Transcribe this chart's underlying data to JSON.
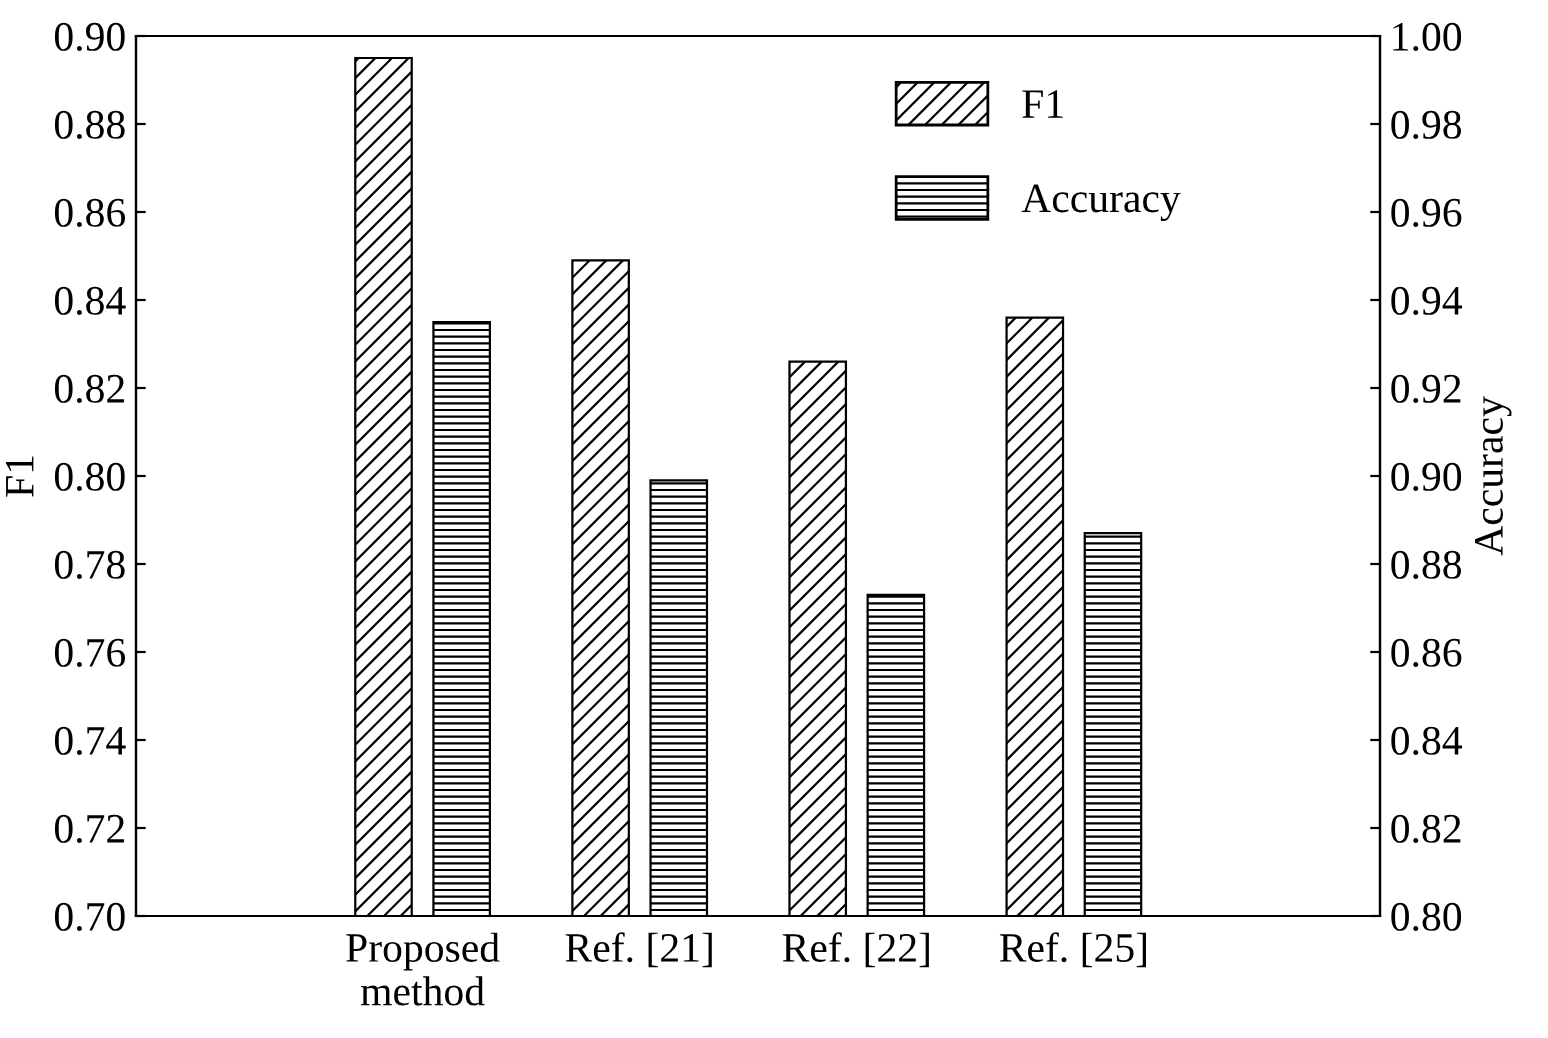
{
  "chart_data": {
    "type": "bar",
    "categories": [
      "Proposed\nmethod",
      "Ref. [21]",
      "Ref. [22]",
      "Ref. [25]"
    ],
    "ylabel": "F1",
    "y2label": "Accuracy",
    "ylim": [
      0.7,
      0.9
    ],
    "yticks": [
      {
        "value": 0.7,
        "label": "0.70"
      },
      {
        "value": 0.72,
        "label": "0.72"
      },
      {
        "value": 0.74,
        "label": "0.74"
      },
      {
        "value": 0.76,
        "label": "0.76"
      },
      {
        "value": 0.78,
        "label": "0.78"
      },
      {
        "value": 0.8,
        "label": "0.80"
      },
      {
        "value": 0.82,
        "label": "0.82"
      },
      {
        "value": 0.84,
        "label": "0.84"
      },
      {
        "value": 0.86,
        "label": "0.86"
      },
      {
        "value": 0.88,
        "label": "0.88"
      },
      {
        "value": 0.9,
        "label": "0.90"
      }
    ],
    "y2lim": [
      0.8,
      1.0
    ],
    "y2ticks": [
      {
        "value": 0.8,
        "label": "0.80"
      },
      {
        "value": 0.82,
        "label": "0.82"
      },
      {
        "value": 0.84,
        "label": "0.84"
      },
      {
        "value": 0.86,
        "label": "0.86"
      },
      {
        "value": 0.88,
        "label": "0.88"
      },
      {
        "value": 0.9,
        "label": "0.90"
      },
      {
        "value": 0.92,
        "label": "0.92"
      },
      {
        "value": 0.94,
        "label": "0.94"
      },
      {
        "value": 0.96,
        "label": "0.96"
      },
      {
        "value": 0.98,
        "label": "0.98"
      },
      {
        "value": 1.0,
        "label": "1.00"
      }
    ],
    "series": [
      {
        "name": "F1",
        "color": "#000000",
        "values": [
          0.895,
          0.849,
          0.826,
          0.836
        ]
      },
      {
        "name": "Accuracy",
        "color": "#000000",
        "axis": "y2",
        "values": [
          0.935,
          0.899,
          0.873,
          0.887
        ]
      }
    ],
    "legend": "top right",
    "grid": false
  }
}
